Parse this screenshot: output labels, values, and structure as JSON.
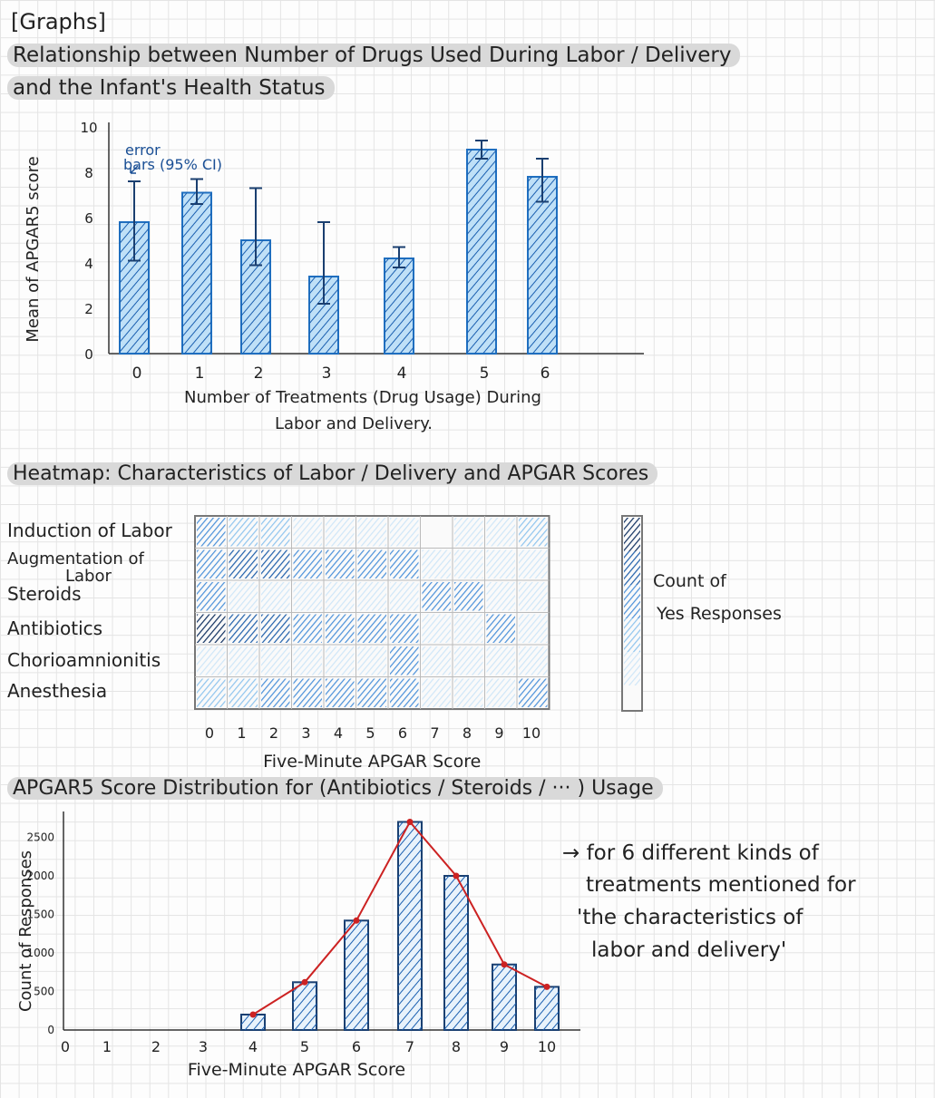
{
  "header": "[Graphs]",
  "titles": {
    "bar1_line1": "Relationship between Number of Drugs Used During Labor / Delivery",
    "bar1_line2": "and the Infant's Health Status",
    "heatmap": "Heatmap: Characteristics of Labor / Delivery and APGAR Scores",
    "hist": "APGAR5 Score Distribution for (Antibiotics / Steroids / ··· ) Usage"
  },
  "annotations": {
    "error_bars_line1": "error",
    "error_bars_line2": "bars (95% CI)",
    "hist_note": [
      "→ for 6 different kinds of",
      "treatments mentioned for",
      "'the characteristics of",
      "labor and delivery'"
    ]
  },
  "colors": {
    "bar_fill": "#bfe0f7",
    "bar_stroke": "#1f6fc0",
    "hatch": "#1a5fb0",
    "error_bar": "#1a3f70",
    "line": "#cc2222",
    "heat_level_1": "#cfe6f8",
    "heat_level_2": "#8fc4ee",
    "heat_level_3": "#4a90d9",
    "heat_level_4": "#1f5faa",
    "heat_level_5": "#0f2f5f"
  },
  "chart_data": [
    {
      "type": "bar",
      "title": "",
      "xlabel": "Number of Treatments (Drug Usage) During Labor and Delivery.",
      "ylabel": "Mean of APGAR5 score",
      "categories": [
        "0",
        "1",
        "2",
        "3",
        "4",
        "5",
        "6"
      ],
      "values": [
        5.8,
        7.1,
        5.0,
        3.4,
        4.2,
        9.0,
        7.8
      ],
      "error_low": [
        4.1,
        6.6,
        3.9,
        2.2,
        3.8,
        8.6,
        6.7
      ],
      "error_high": [
        7.6,
        7.7,
        7.3,
        5.8,
        4.7,
        9.4,
        8.6
      ],
      "ylim": [
        0,
        10
      ],
      "yticks": [
        "0",
        "2",
        "4",
        "6",
        "8",
        "10"
      ],
      "grid": false
    },
    {
      "type": "heatmap",
      "title": "",
      "xlabel": "Five-Minute APGAR Score",
      "rows": [
        "Induction of Labor",
        "Augmentation of Labor",
        "Steroids",
        "Antibiotics",
        "Chorioamnionitis",
        "Anesthesia"
      ],
      "columns": [
        "0",
        "1",
        "2",
        "3",
        "4",
        "5",
        "6",
        "7",
        "8",
        "9",
        "10"
      ],
      "values": [
        [
          3,
          2,
          2,
          1,
          1,
          1,
          1,
          0,
          1,
          1,
          2
        ],
        [
          3,
          4,
          4,
          3,
          3,
          3,
          3,
          1,
          1,
          1,
          1
        ],
        [
          3,
          1,
          1,
          1,
          1,
          1,
          1,
          3,
          3,
          1,
          1
        ],
        [
          5,
          4,
          4,
          3,
          3,
          3,
          3,
          1,
          1,
          3,
          1
        ],
        [
          1,
          1,
          1,
          1,
          1,
          1,
          3,
          1,
          1,
          1,
          1
        ],
        [
          2,
          2,
          3,
          3,
          3,
          3,
          3,
          1,
          1,
          1,
          3
        ]
      ],
      "legend_label": "Count of Yes Responses",
      "legend_placement": "right"
    },
    {
      "type": "bar",
      "title": "",
      "xlabel": "Five-Minute APGAR Score",
      "ylabel": "Count of Responses",
      "categories": [
        "0",
        "1",
        "2",
        "3",
        "4",
        "5",
        "6",
        "7",
        "8",
        "9",
        "10"
      ],
      "values": [
        0,
        0,
        0,
        0,
        200,
        620,
        1420,
        2700,
        2000,
        850,
        560
      ],
      "yticks": [
        "0",
        "500",
        "1000",
        "1500",
        "2000",
        "2500"
      ],
      "ylim": [
        0,
        2800
      ],
      "overlay_line": true,
      "grid": false
    }
  ]
}
